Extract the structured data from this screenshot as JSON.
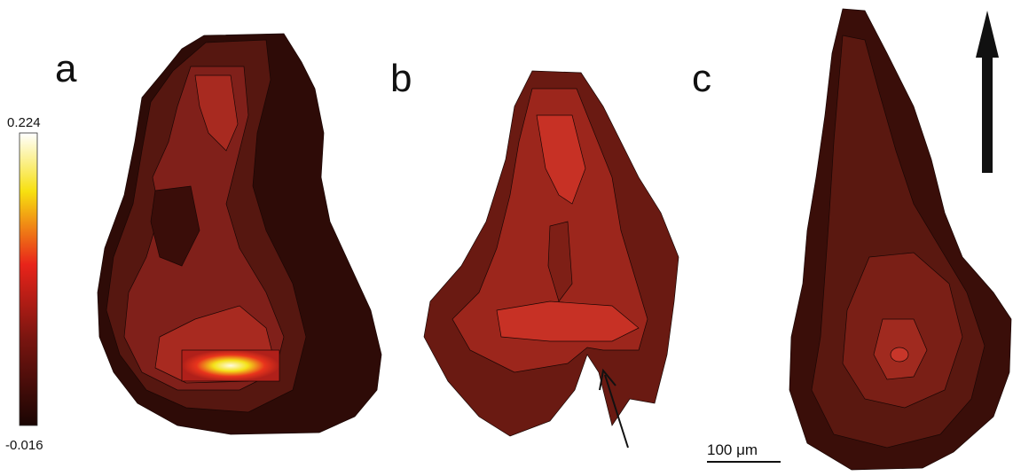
{
  "panels": [
    {
      "label": "a"
    },
    {
      "label": "b"
    },
    {
      "label": "c"
    }
  ],
  "colorbar": {
    "max": 0.224,
    "min": -0.016
  },
  "scale_bar": {
    "label": "100 μm"
  }
}
